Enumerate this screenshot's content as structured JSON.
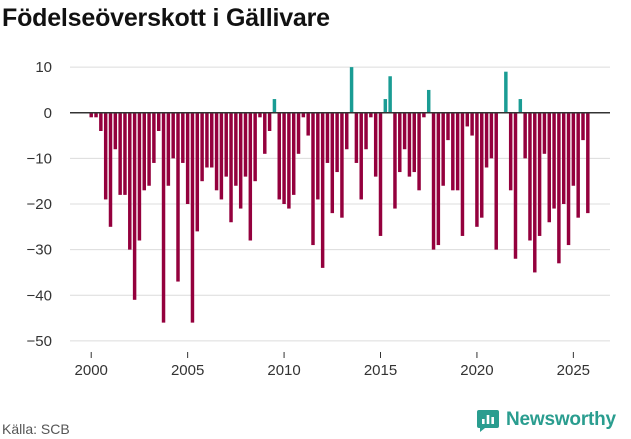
{
  "header": {
    "title": "Födelseöverskott i Gällivare"
  },
  "footer": {
    "source": "Källa: SCB",
    "brand": "Newsworthy"
  },
  "colors": {
    "negative": "#94003d",
    "positive": "#1a9c94",
    "zero_line": "#333333",
    "grid": "#dcdcdc",
    "brand": "#2a9d8f"
  },
  "icons": {
    "brand_logo": "newsworthy-logo-icon"
  },
  "chart_data": {
    "type": "bar",
    "title": "Födelseöverskott i Gällivare",
    "xlabel": "",
    "ylabel": "",
    "ylim": [
      -52,
      12
    ],
    "yticks": [
      10,
      0,
      -10,
      -20,
      -30,
      -40,
      -50
    ],
    "xlim": [
      1998.9,
      2026.9
    ],
    "xticks": [
      2000,
      2005,
      2010,
      2015,
      2020,
      2025
    ],
    "frequency": "quarterly",
    "start": 2000.0,
    "values": [
      -1,
      -1,
      -4,
      -19,
      -25,
      -8,
      -18,
      -18,
      -30,
      -41,
      -28,
      -17,
      -16,
      -11,
      -4,
      -46,
      -16,
      -10,
      -37,
      -11,
      -20,
      -46,
      -26,
      -15,
      -12,
      -12,
      -17,
      -19,
      -14,
      -24,
      -16,
      -21,
      -14,
      -28,
      -15,
      -1,
      -9,
      -4,
      3,
      -19,
      -20,
      -21,
      -18,
      -9,
      -1,
      -5,
      -29,
      -19,
      -34,
      -11,
      -22,
      -13,
      -23,
      -8,
      10,
      -11,
      -19,
      -8,
      -1,
      -14,
      -27,
      3,
      8,
      -21,
      -13,
      -8,
      -14,
      -13,
      -17,
      -1,
      5,
      -30,
      -29,
      -16,
      -6,
      -17,
      -17,
      -27,
      -3,
      -5,
      -25,
      -23,
      -12,
      -10,
      -30,
      0,
      9,
      -17,
      -32,
      3,
      -10,
      -28,
      -35,
      -27,
      -9,
      -24,
      -21,
      -33,
      -20,
      -29,
      -16,
      -23,
      -6,
      -22
    ]
  }
}
